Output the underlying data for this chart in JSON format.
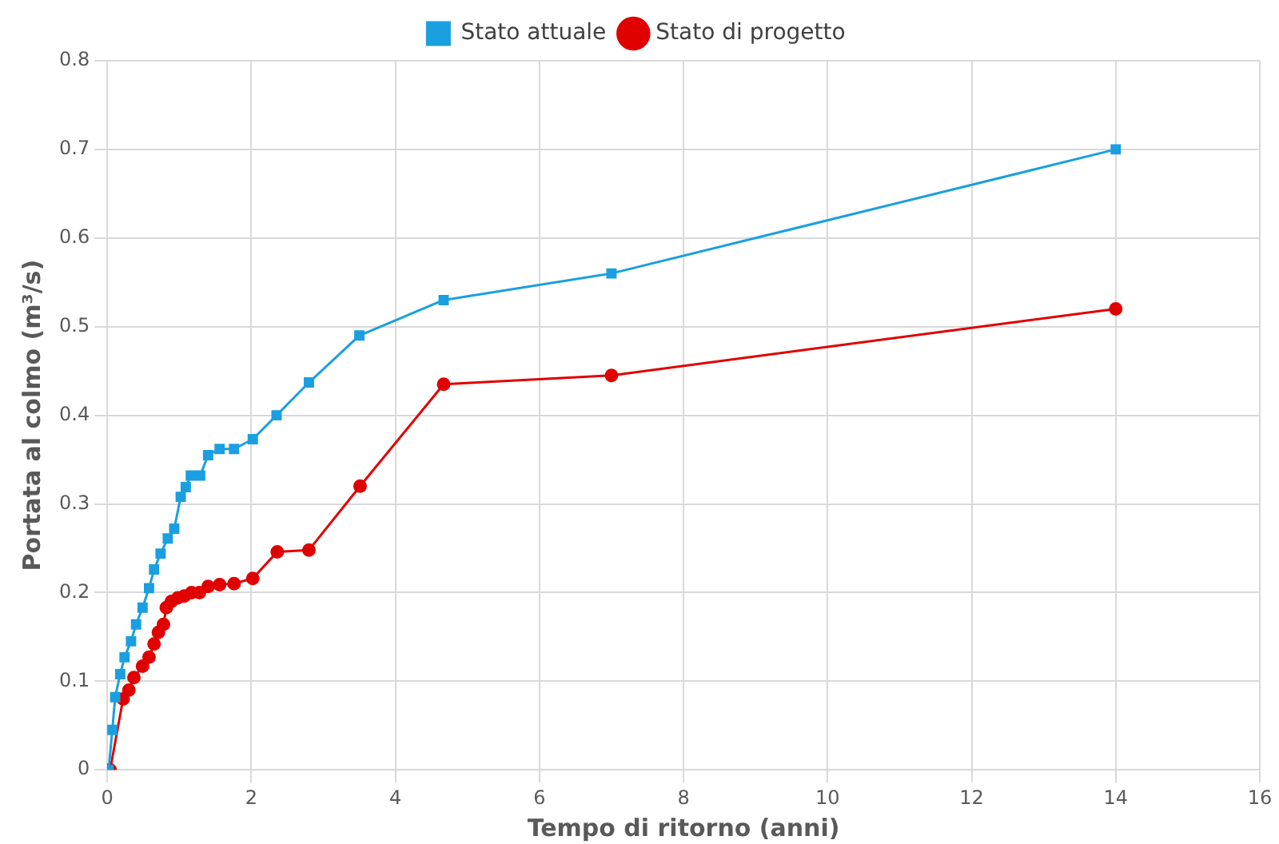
{
  "chart_data": {
    "type": "line",
    "xlabel": "Tempo di ritorno (anni)",
    "ylabel": "Portata al colmo (m³/s)",
    "xlim": [
      0,
      16
    ],
    "xticks": [
      0,
      2,
      4,
      6,
      8,
      10,
      12,
      14,
      16
    ],
    "ylim": [
      0,
      0.8
    ],
    "yticks": [
      0,
      0.1,
      0.2,
      0.3,
      0.4,
      0.5,
      0.6,
      0.7,
      0.8
    ],
    "grid": true,
    "legend": "top",
    "series": [
      {
        "name": "Stato attuale",
        "color": "#1a9fe0",
        "marker": "square",
        "x": [
          14,
          7,
          4.67,
          3.5,
          2.8,
          2.35,
          2.02,
          1.76,
          1.56,
          1.4,
          1.29,
          1.16,
          1.09,
          1.02,
          0.93,
          0.84,
          0.74,
          0.65,
          0.58,
          0.49,
          0.4,
          0.33,
          0.24,
          0.18,
          0.11,
          0.07,
          0.02
        ],
        "values": [
          0.7,
          0.56,
          0.53,
          0.49,
          0.437,
          0.4,
          0.373,
          0.362,
          0.362,
          0.355,
          0.332,
          0.332,
          0.319,
          0.308,
          0.272,
          0.261,
          0.244,
          0.226,
          0.205,
          0.183,
          0.164,
          0.145,
          0.127,
          0.108,
          0.082,
          0.045,
          0
        ]
      },
      {
        "name": "Stato di progetto",
        "color": "#e00000",
        "marker": "circle",
        "x": [
          14,
          7,
          4.67,
          3.51,
          2.8,
          2.36,
          2.02,
          1.76,
          1.56,
          1.4,
          1.28,
          1.17,
          1.07,
          0.98,
          0.89,
          0.82,
          0.78,
          0.71,
          0.65,
          0.58,
          0.49,
          0.37,
          0.3,
          0.22,
          0.04
        ],
        "values": [
          0.52,
          0.445,
          0.435,
          0.32,
          0.248,
          0.246,
          0.216,
          0.21,
          0.209,
          0.207,
          0.2,
          0.2,
          0.196,
          0.194,
          0.19,
          0.183,
          0.164,
          0.155,
          0.142,
          0.127,
          0.117,
          0.104,
          0.09,
          0.08,
          0
        ]
      }
    ]
  }
}
